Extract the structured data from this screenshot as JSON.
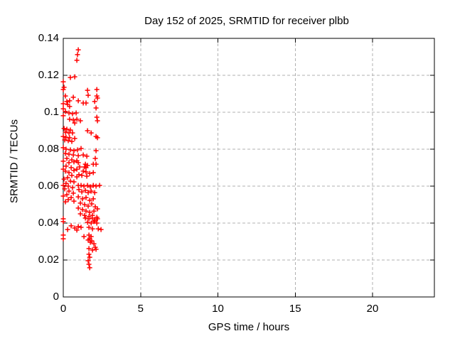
{
  "chart_data": {
    "type": "scatter",
    "title": "Day 152 of 2025, SRMTID for receiver plbb",
    "xlabel": "GPS time / hours",
    "ylabel": "SRMTID / TECUs",
    "xlim": [
      0,
      24
    ],
    "ylim": [
      0,
      0.14
    ],
    "xticks": [
      0,
      5,
      10,
      15,
      20
    ],
    "xtick_labels": [
      "0",
      "5",
      "10",
      "15",
      "20"
    ],
    "yticks": [
      0,
      0.02,
      0.04,
      0.06,
      0.08,
      0.1,
      0.12,
      0.14
    ],
    "ytick_labels": [
      "0",
      "0.02",
      "0.04",
      "0.06",
      "0.08",
      "0.1",
      "0.12",
      "0.14"
    ],
    "grid": true,
    "grid_style": "dashed",
    "legend_position": "none",
    "marker": "plus",
    "colors": {
      "marker": "#ff0000",
      "grid": "#b0b0b0",
      "border": "#000000",
      "text": "#000000",
      "background": "#ffffff"
    },
    "series": [
      {
        "name": "SRMTID",
        "points": [
          [
            0.97,
            0.1338
          ],
          [
            0.92,
            0.1312
          ],
          [
            0.88,
            0.1281
          ],
          [
            0.74,
            0.1192
          ],
          [
            0.46,
            0.1188
          ],
          [
            0.0,
            0.1165
          ],
          [
            0.05,
            0.1135
          ],
          [
            0.0,
            0.1123
          ],
          [
            1.57,
            0.1119
          ],
          [
            2.17,
            0.1123
          ],
          [
            1.61,
            0.1092
          ],
          [
            0.14,
            0.1088
          ],
          [
            0.65,
            0.1081
          ],
          [
            2.17,
            0.1088
          ],
          [
            2.21,
            0.1077
          ],
          [
            0.97,
            0.1062
          ],
          [
            0.23,
            0.1058
          ],
          [
            0.41,
            0.1062
          ],
          [
            1.29,
            0.105
          ],
          [
            1.47,
            0.105
          ],
          [
            2.03,
            0.1058
          ],
          [
            2.12,
            0.1023
          ],
          [
            0.0,
            0.1046
          ],
          [
            0.28,
            0.1042
          ],
          [
            0.41,
            0.1031
          ],
          [
            0.0,
            0.1019
          ],
          [
            0.14,
            0.1004
          ],
          [
            0.37,
            0.0996
          ],
          [
            0.6,
            0.0992
          ],
          [
            0.83,
            0.0996
          ],
          [
            0.0,
            0.0981
          ],
          [
            0.41,
            0.0962
          ],
          [
            0.65,
            0.0958
          ],
          [
            0.88,
            0.0962
          ],
          [
            1.11,
            0.0954
          ],
          [
            0.74,
            0.0942
          ],
          [
            2.17,
            0.0973
          ],
          [
            2.21,
            0.0954
          ],
          [
            0.05,
            0.0912
          ],
          [
            0.23,
            0.0908
          ],
          [
            0.46,
            0.0904
          ],
          [
            0.14,
            0.0892
          ],
          [
            0.37,
            0.0888
          ],
          [
            0.6,
            0.0888
          ],
          [
            1.57,
            0.09
          ],
          [
            1.8,
            0.0888
          ],
          [
            2.12,
            0.0869
          ],
          [
            2.21,
            0.0862
          ],
          [
            0.0,
            0.0869
          ],
          [
            0.18,
            0.0865
          ],
          [
            0.41,
            0.0862
          ],
          [
            0.74,
            0.0858
          ],
          [
            0.09,
            0.085
          ],
          [
            0.32,
            0.0846
          ],
          [
            0.55,
            0.0842
          ],
          [
            0.0,
            0.0808
          ],
          [
            0.18,
            0.08
          ],
          [
            0.46,
            0.0796
          ],
          [
            0.69,
            0.0792
          ],
          [
            0.92,
            0.0796
          ],
          [
            1.15,
            0.0804
          ],
          [
            2.12,
            0.0792
          ],
          [
            0.14,
            0.0777
          ],
          [
            0.37,
            0.0773
          ],
          [
            0.65,
            0.0769
          ],
          [
            0.97,
            0.0765
          ],
          [
            1.29,
            0.0769
          ],
          [
            1.52,
            0.0762
          ],
          [
            2.07,
            0.075
          ],
          [
            0.23,
            0.075
          ],
          [
            0.55,
            0.0742
          ],
          [
            0.88,
            0.0738
          ],
          [
            0.0,
            0.0735
          ],
          [
            0.97,
            0.0727
          ],
          [
            1.43,
            0.0719
          ],
          [
            1.57,
            0.0712
          ],
          [
            1.38,
            0.0704
          ],
          [
            1.47,
            0.07
          ],
          [
            1.94,
            0.0719
          ],
          [
            2.12,
            0.0719
          ],
          [
            1.06,
            0.0704
          ],
          [
            0.88,
            0.0692
          ],
          [
            0.37,
            0.0727
          ],
          [
            0.69,
            0.0731
          ],
          [
            0.18,
            0.0708
          ],
          [
            0.51,
            0.07
          ],
          [
            0.69,
            0.0685
          ],
          [
            0.37,
            0.0673
          ],
          [
            0.14,
            0.0681
          ],
          [
            0.0,
            0.0692
          ],
          [
            1.29,
            0.0681
          ],
          [
            1.47,
            0.0677
          ],
          [
            1.71,
            0.0669
          ],
          [
            1.94,
            0.0673
          ],
          [
            1.01,
            0.0662
          ],
          [
            1.2,
            0.0658
          ],
          [
            0.88,
            0.065
          ],
          [
            1.52,
            0.0654
          ],
          [
            0.55,
            0.0658
          ],
          [
            0.28,
            0.0646
          ],
          [
            0.05,
            0.0638
          ],
          [
            0.46,
            0.0627
          ],
          [
            0.69,
            0.0623
          ],
          [
            0.18,
            0.0615
          ],
          [
            0.0,
            0.0604
          ],
          [
            0.32,
            0.06
          ],
          [
            0.6,
            0.0592
          ],
          [
            0.97,
            0.0604
          ],
          [
            1.15,
            0.0604
          ],
          [
            1.34,
            0.06
          ],
          [
            1.57,
            0.0604
          ],
          [
            1.75,
            0.0596
          ],
          [
            1.94,
            0.0604
          ],
          [
            2.12,
            0.06
          ],
          [
            2.35,
            0.0604
          ],
          [
            0.09,
            0.0585
          ],
          [
            0.37,
            0.0573
          ],
          [
            0.65,
            0.0562
          ],
          [
            0.23,
            0.0554
          ],
          [
            0.0,
            0.0546
          ],
          [
            1.01,
            0.0581
          ],
          [
            1.2,
            0.0569
          ],
          [
            1.43,
            0.0577
          ],
          [
            1.61,
            0.0565
          ],
          [
            1.8,
            0.0573
          ],
          [
            2.03,
            0.0565
          ],
          [
            0.51,
            0.0538
          ],
          [
            0.32,
            0.0527
          ],
          [
            0.14,
            0.0515
          ],
          [
            0.69,
            0.0519
          ],
          [
            0.97,
            0.0542
          ],
          [
            1.24,
            0.0531
          ],
          [
            1.47,
            0.0538
          ],
          [
            1.71,
            0.0523
          ],
          [
            1.94,
            0.0531
          ],
          [
            1.11,
            0.0508
          ],
          [
            1.38,
            0.05
          ],
          [
            1.61,
            0.0492
          ],
          [
            1.84,
            0.0504
          ],
          [
            2.07,
            0.0488
          ],
          [
            0.97,
            0.0481
          ],
          [
            1.24,
            0.0473
          ],
          [
            1.47,
            0.0465
          ],
          [
            1.71,
            0.0458
          ],
          [
            1.98,
            0.0465
          ],
          [
            2.21,
            0.0477
          ],
          [
            1.11,
            0.045
          ],
          [
            1.38,
            0.0442
          ],
          [
            1.66,
            0.0435
          ],
          [
            1.89,
            0.0442
          ],
          [
            2.17,
            0.0431
          ],
          [
            1.43,
            0.0427
          ],
          [
            1.66,
            0.0423
          ],
          [
            1.89,
            0.0427
          ],
          [
            2.03,
            0.0415
          ],
          [
            2.21,
            0.0423
          ],
          [
            0.0,
            0.0423
          ],
          [
            1.57,
            0.0404
          ],
          [
            1.8,
            0.04
          ],
          [
            1.98,
            0.0408
          ],
          [
            2.17,
            0.04
          ],
          [
            0.0,
            0.0408
          ],
          [
            0.51,
            0.0385
          ],
          [
            0.74,
            0.0373
          ],
          [
            0.97,
            0.0381
          ],
          [
            1.15,
            0.0377
          ],
          [
            0.28,
            0.0365
          ],
          [
            0.88,
            0.0362
          ],
          [
            1.66,
            0.0377
          ],
          [
            1.89,
            0.0369
          ],
          [
            2.26,
            0.0369
          ],
          [
            2.44,
            0.0365
          ],
          [
            0.0,
            0.0335
          ],
          [
            0.0,
            0.0315
          ],
          [
            1.34,
            0.0327
          ],
          [
            1.66,
            0.0335
          ],
          [
            1.8,
            0.0327
          ],
          [
            1.71,
            0.0315
          ],
          [
            1.61,
            0.0308
          ],
          [
            1.84,
            0.0304
          ],
          [
            1.75,
            0.0296
          ],
          [
            1.98,
            0.0288
          ],
          [
            2.07,
            0.0269
          ],
          [
            1.66,
            0.0262
          ],
          [
            1.89,
            0.0254
          ],
          [
            2.12,
            0.0258
          ],
          [
            1.66,
            0.0231
          ],
          [
            1.71,
            0.0215
          ],
          [
            1.61,
            0.0196
          ],
          [
            1.66,
            0.0177
          ],
          [
            1.71,
            0.0158
          ]
        ]
      }
    ]
  }
}
